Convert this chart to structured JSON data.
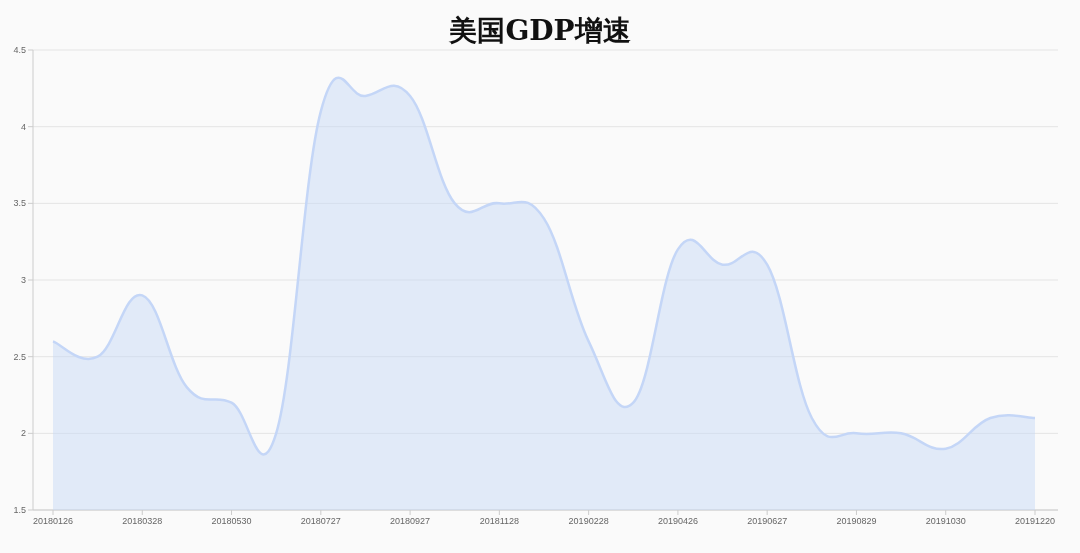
{
  "chart_data": {
    "type": "area",
    "title": "美国GDP增速",
    "categories": [
      "20180126",
      null,
      "20180328",
      null,
      "20180530",
      null,
      "20180727",
      null,
      "20180927",
      null,
      "20181128",
      null,
      "20190228",
      null,
      "20190426",
      null,
      "20190627",
      null,
      "20190829",
      null,
      "20191030",
      null,
      "20191220"
    ],
    "values": [
      2.6,
      2.5,
      2.9,
      2.3,
      2.2,
      2.0,
      4.1,
      4.2,
      4.2,
      3.5,
      3.5,
      3.4,
      2.6,
      2.2,
      3.2,
      3.1,
      3.1,
      2.1,
      2.0,
      2.0,
      1.9,
      2.1,
      2.1
    ],
    "color": "#c4d6f7",
    "ylim": [
      1.5,
      4.5
    ],
    "yticks": [
      1.5,
      2,
      2.5,
      3,
      3.5,
      4,
      4.5
    ],
    "grid": "y"
  }
}
